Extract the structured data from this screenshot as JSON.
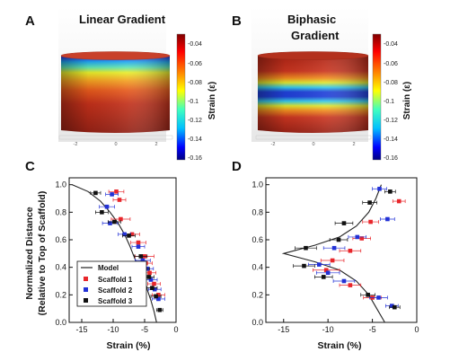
{
  "panels": {
    "A": {
      "letter": "A",
      "title": "Linear Gradient",
      "xticks": [
        "-2",
        "0",
        "2"
      ]
    },
    "B": {
      "letter": "B",
      "title_line1": "Biphasic",
      "title_line2": "Gradient",
      "xticks": [
        "-2",
        "0",
        "2"
      ]
    },
    "C": {
      "letter": "C"
    },
    "D": {
      "letter": "D"
    }
  },
  "colorbar": {
    "label": "Strain (ε)",
    "ticks": [
      "-0.04",
      "-0.06",
      "-0.08",
      "-0.1",
      "-0.12",
      "-0.14",
      "-0.16"
    ],
    "colors": [
      "#7f0000",
      "#ff0000",
      "#ff8000",
      "#ffff00",
      "#40ffbf",
      "#00bfff",
      "#0000ff",
      "#00007f"
    ]
  },
  "series_colors": {
    "Model": "#222222",
    "Scaffold 1": "#e8262b",
    "Scaffold 2": "#2231d6",
    "Scaffold 3": "#111111"
  },
  "chart_data": [
    {
      "panel": "C",
      "type": "scatter",
      "xlabel": "Strain (%)",
      "ylabel_line1": "Normalized Distance",
      "ylabel_line2": "(Relative to Top of Scaffold)",
      "xlim": [
        -17,
        0
      ],
      "ylim": [
        0,
        1.05
      ],
      "xticks": [
        -15,
        -10,
        -5,
        0
      ],
      "yticks": [
        0.0,
        0.2,
        0.4,
        0.6,
        0.8,
        1.0
      ],
      "legend_position": "bottom-left",
      "series": [
        {
          "name": "Model",
          "kind": "line",
          "points": [
            [
              -16.5,
              1.0
            ],
            [
              -14,
              0.95
            ],
            [
              -12,
              0.88
            ],
            [
              -10.5,
              0.8
            ],
            [
              -9.2,
              0.72
            ],
            [
              -8.2,
              0.64
            ],
            [
              -7.4,
              0.56
            ],
            [
              -6.7,
              0.48
            ],
            [
              -6.0,
              0.4
            ],
            [
              -5.3,
              0.32
            ],
            [
              -4.6,
              0.24
            ],
            [
              -4.0,
              0.16
            ],
            [
              -3.5,
              0.08
            ],
            [
              -3.1,
              0.0
            ]
          ]
        },
        {
          "name": "Scaffold 1",
          "kind": "points",
          "points": [
            [
              -9.5,
              0.95,
              1.2
            ],
            [
              -9.0,
              0.89,
              1.0
            ],
            [
              -8.8,
              0.75,
              1.5
            ],
            [
              -7.0,
              0.64,
              1.2
            ],
            [
              -6.0,
              0.58,
              1.2
            ],
            [
              -5.0,
              0.48,
              1.5
            ],
            [
              -4.8,
              0.43,
              1.0
            ],
            [
              -4.2,
              0.36,
              1.0
            ],
            [
              -3.5,
              0.28,
              1.0
            ],
            [
              -2.8,
              0.2,
              1.0
            ]
          ]
        },
        {
          "name": "Scaffold 2",
          "kind": "points",
          "points": [
            [
              -10.2,
              0.93,
              1.0
            ],
            [
              -11.0,
              0.84,
              1.2
            ],
            [
              -10.5,
              0.72,
              1.2
            ],
            [
              -8.2,
              0.64,
              1.0
            ],
            [
              -6.0,
              0.55,
              1.0
            ],
            [
              -5.3,
              0.45,
              1.2
            ],
            [
              -4.6,
              0.39,
              1.0
            ],
            [
              -4.0,
              0.31,
              1.0
            ],
            [
              -3.4,
              0.24,
              1.0
            ],
            [
              -2.8,
              0.17,
              1.0
            ]
          ]
        },
        {
          "name": "Scaffold 3",
          "kind": "points",
          "points": [
            [
              -12.8,
              0.94,
              0.8
            ],
            [
              -11.8,
              0.8,
              1.0
            ],
            [
              -9.8,
              0.73,
              1.0
            ],
            [
              -7.5,
              0.63,
              1.0
            ],
            [
              -5.6,
              0.48,
              1.0
            ],
            [
              -5.0,
              0.39,
              0.8
            ],
            [
              -4.3,
              0.33,
              0.8
            ],
            [
              -3.8,
              0.25,
              0.8
            ],
            [
              -3.2,
              0.19,
              0.8
            ],
            [
              -2.6,
              0.09,
              0.5
            ]
          ]
        }
      ]
    },
    {
      "panel": "D",
      "type": "scatter",
      "xlabel": "Strain (%)",
      "xlim": [
        -17,
        0
      ],
      "ylim": [
        0,
        1.05
      ],
      "xticks": [
        -15,
        -10,
        -5,
        0
      ],
      "yticks": [
        0.0,
        0.2,
        0.4,
        0.6,
        0.8,
        1.0
      ],
      "series": [
        {
          "name": "Model",
          "kind": "line",
          "points": [
            [
              -4.0,
              1.0
            ],
            [
              -4.6,
              0.9
            ],
            [
              -5.4,
              0.8
            ],
            [
              -6.8,
              0.7
            ],
            [
              -8.7,
              0.62
            ],
            [
              -11.5,
              0.56
            ],
            [
              -15.0,
              0.5
            ],
            [
              -11.5,
              0.44
            ],
            [
              -8.7,
              0.38
            ],
            [
              -6.8,
              0.3
            ],
            [
              -5.4,
              0.2
            ],
            [
              -4.5,
              0.1
            ],
            [
              -3.6,
              0.0
            ]
          ]
        },
        {
          "name": "Scaffold 1",
          "kind": "points",
          "points": [
            [
              -2.0,
              0.88,
              0.7
            ],
            [
              -5.2,
              0.73,
              0.9
            ],
            [
              -6.2,
              0.61,
              1.0
            ],
            [
              -7.5,
              0.52,
              1.2
            ],
            [
              -9.5,
              0.45,
              1.3
            ],
            [
              -10.2,
              0.38,
              1.5
            ],
            [
              -7.5,
              0.27,
              1.2
            ],
            [
              -5.0,
              0.18,
              1.0
            ]
          ]
        },
        {
          "name": "Scaffold 2",
          "kind": "points",
          "points": [
            [
              -4.2,
              0.97,
              0.8
            ],
            [
              -3.3,
              0.75,
              0.8
            ],
            [
              -6.7,
              0.62,
              1.0
            ],
            [
              -9.3,
              0.54,
              1.2
            ],
            [
              -11.0,
              0.42,
              1.2
            ],
            [
              -10.0,
              0.36,
              1.3
            ],
            [
              -8.2,
              0.3,
              1.2
            ],
            [
              -4.3,
              0.18,
              1.0
            ],
            [
              -2.8,
              0.12,
              0.7
            ]
          ]
        },
        {
          "name": "Scaffold 3",
          "kind": "points",
          "points": [
            [
              -3.0,
              0.95,
              0.6
            ],
            [
              -5.3,
              0.87,
              0.8
            ],
            [
              -8.2,
              0.72,
              1.0
            ],
            [
              -8.8,
              0.6,
              1.0
            ],
            [
              -12.5,
              0.54,
              1.2
            ],
            [
              -12.7,
              0.41,
              1.2
            ],
            [
              -10.5,
              0.33,
              1.0
            ],
            [
              -5.5,
              0.2,
              0.8
            ],
            [
              -2.5,
              0.11,
              0.6
            ]
          ]
        }
      ]
    }
  ]
}
